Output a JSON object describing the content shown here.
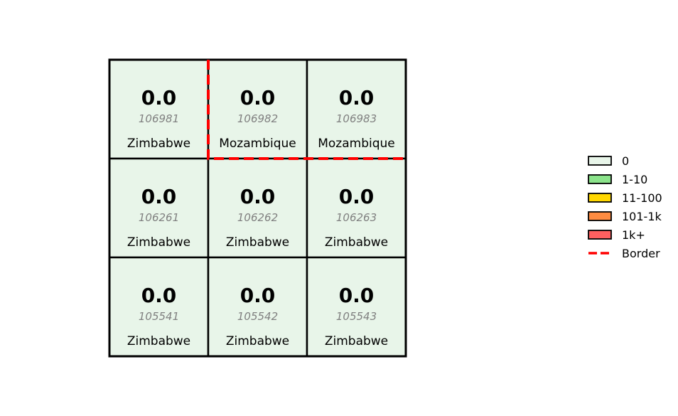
{
  "chart_data": {
    "type": "heatmap",
    "rows": 3,
    "cols": 3,
    "cells": [
      {
        "row": 0,
        "col": 0,
        "value": "0.0",
        "id": "106981",
        "country": "Zimbabwe",
        "bin": "0"
      },
      {
        "row": 0,
        "col": 1,
        "value": "0.0",
        "id": "106982",
        "country": "Mozambique",
        "bin": "0"
      },
      {
        "row": 0,
        "col": 2,
        "value": "0.0",
        "id": "106983",
        "country": "Mozambique",
        "bin": "0"
      },
      {
        "row": 1,
        "col": 0,
        "value": "0.0",
        "id": "106261",
        "country": "Zimbabwe",
        "bin": "0"
      },
      {
        "row": 1,
        "col": 1,
        "value": "0.0",
        "id": "106262",
        "country": "Zimbabwe",
        "bin": "0"
      },
      {
        "row": 1,
        "col": 2,
        "value": "0.0",
        "id": "106263",
        "country": "Zimbabwe",
        "bin": "0"
      },
      {
        "row": 2,
        "col": 0,
        "value": "0.0",
        "id": "105541",
        "country": "Zimbabwe",
        "bin": "0"
      },
      {
        "row": 2,
        "col": 1,
        "value": "0.0",
        "id": "105542",
        "country": "Zimbabwe",
        "bin": "0"
      },
      {
        "row": 2,
        "col": 2,
        "value": "0.0",
        "id": "105543",
        "country": "Zimbabwe",
        "bin": "0"
      }
    ],
    "legend": {
      "placement": "right",
      "entries": [
        {
          "label": "0",
          "color": "#e8f5e9",
          "kind": "patch"
        },
        {
          "label": "1-10",
          "color": "#8be38b",
          "kind": "patch"
        },
        {
          "label": "11-100",
          "color": "#ffd700",
          "kind": "patch"
        },
        {
          "label": "101-1k",
          "color": "#ff8c42",
          "kind": "patch"
        },
        {
          "label": "1k+",
          "color": "#ff6060",
          "kind": "patch"
        },
        {
          "label": "Border",
          "color": "#ff0000",
          "kind": "dashed-line"
        }
      ]
    },
    "border_color": "#ff0000",
    "grid_line_color": "#000000",
    "title": "",
    "xlabel": "",
    "ylabel": ""
  }
}
